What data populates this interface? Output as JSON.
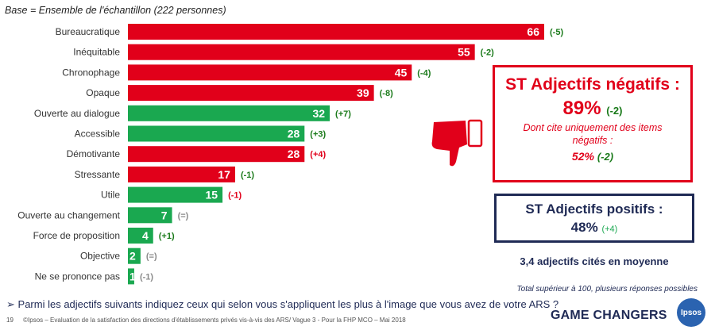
{
  "base_text": "Base = Ensemble de l'échantillon (222 personnes)",
  "chart_data": {
    "type": "bar",
    "orientation": "horizontal",
    "categories": [
      "Bureaucratique",
      "Inéquitable",
      "Chronophage",
      "Opaque",
      "Ouverte au dialogue",
      "Accessible",
      "Démotivante",
      "Stressante",
      "Utile",
      "Ouverte au changement",
      "Force de proposition",
      "Objective",
      "Ne se prononce pas"
    ],
    "values": [
      66,
      55,
      45,
      39,
      32,
      28,
      28,
      17,
      15,
      7,
      4,
      2,
      1
    ],
    "changes": [
      "(-5)",
      "(-2)",
      "(-4)",
      "(-8)",
      "(+7)",
      "(+3)",
      "(+4)",
      "(-1)",
      "(-1)",
      "(=)",
      "(+1)",
      "(=)",
      "(-1)"
    ],
    "change_colors": [
      "#1a7a1a",
      "#1a7a1a",
      "#1a7a1a",
      "#1a7a1a",
      "#1a7a1a",
      "#1a7a1a",
      "#e1001a",
      "#1a7a1a",
      "#e1001a",
      "#8a8a8a",
      "#1a7a1a",
      "#8a8a8a",
      "#8a8a8a"
    ],
    "polarity": [
      "negative",
      "negative",
      "negative",
      "negative",
      "positive",
      "positive",
      "negative",
      "negative",
      "positive",
      "positive",
      "positive",
      "positive",
      "positive"
    ],
    "colors": {
      "negative": "#e1001a",
      "positive": "#1aa850"
    },
    "xlim": [
      0,
      66
    ]
  },
  "negative_box": {
    "title": "ST Adjectifs négatifs :",
    "pct": "89%",
    "pct_change": "(-2)",
    "note": "Dont cite uniquement des items négatifs :",
    "sub_pct": "52%",
    "sub_change": "(-2)"
  },
  "positive_box": {
    "title": "ST Adjectifs positifs :",
    "pct": "48%",
    "pct_change": "(+4)"
  },
  "average_text": "3,4 adjectifs cités en moyenne",
  "total_note": "Total supérieur à 100, plusieurs réponses possibles",
  "question": "Parmi les adjectifs suivants indiquez ceux qui selon vous s'appliquent les plus à l'image que vous avez de votre ARS ?",
  "footer": {
    "page": "19",
    "text": "©Ipsos – Evaluation de la satisfaction des directions d'établissements privés vis-à-vis des ARS/ Vague 3 - Pour la FHP MCO – Mai 2018"
  },
  "brand_text": "GAME CHANGERS",
  "logo_text": "Ipsos",
  "question_marker": "➢"
}
